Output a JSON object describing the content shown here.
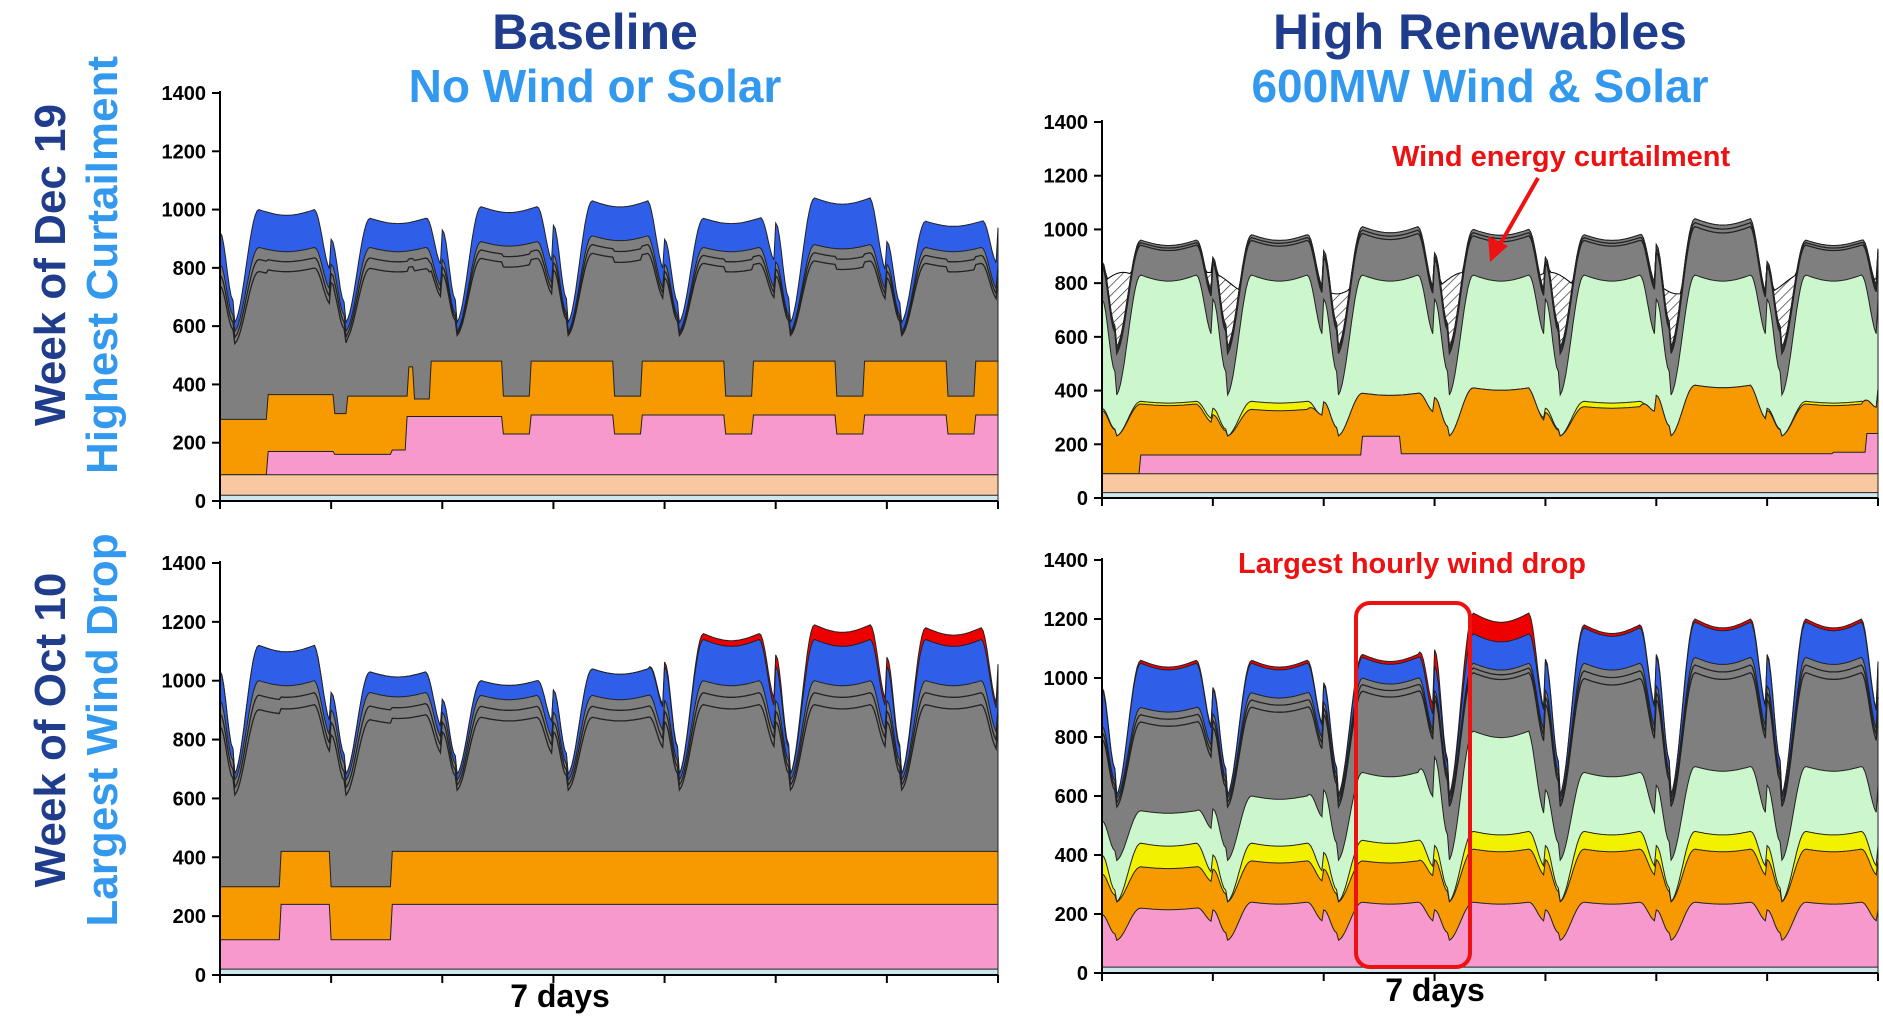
{
  "columns": [
    {
      "title": "Baseline",
      "subtitle": "No Wind or Solar"
    },
    {
      "title": "High Renewables",
      "subtitle": "600MW Wind & Solar"
    }
  ],
  "rows": [
    {
      "title": "Week of Dec 19",
      "subtitle": "Highest Curtailment"
    },
    {
      "title": "Week of Oct 10",
      "subtitle": "Largest Wind Drop"
    }
  ],
  "xlabel": "7 days",
  "annotations": {
    "curtailment": "Wind energy curtailment",
    "wind_drop": "Largest hourly wind drop"
  },
  "colors": {
    "title": "#1F3D8C",
    "subtitle": "#3399EE",
    "annotation": "#EE1111",
    "base": "#CCE8EE",
    "peach": "#FAC8A0",
    "pink": "#F799CC",
    "orange": "#F79900",
    "yellow": "#F2F200",
    "wind": "#CCF7CC",
    "gray": "#7F7F7F",
    "blue": "#2F5FE8",
    "red": "#EE0000"
  },
  "chart_data": [
    {
      "id": "baseline-dec",
      "type": "area",
      "title": "",
      "xlabel": "",
      "ylabel": "",
      "ylim": [
        0,
        1400
      ],
      "yticks": [
        0,
        200,
        400,
        600,
        800,
        1000,
        1200,
        1400
      ],
      "x_span_days": 7,
      "layers": [
        {
          "name": "base",
          "kind": "const",
          "value": 20
        },
        {
          "name": "peach",
          "kind": "const",
          "value": 90
        },
        {
          "name": "pink",
          "kind": "steps",
          "steps": [
            [
              0,
              90
            ],
            [
              0.42,
              170
            ],
            [
              1.02,
              160
            ],
            [
              1.55,
              175
            ],
            [
              1.65,
              175
            ],
            [
              1.68,
              290
            ],
            [
              2.55,
              230
            ],
            [
              2.8,
              295
            ],
            [
              3.55,
              230
            ],
            [
              3.8,
              295
            ],
            [
              4.55,
              230
            ],
            [
              4.8,
              295
            ],
            [
              5.55,
              230
            ],
            [
              5.8,
              295
            ],
            [
              6.55,
              230
            ],
            [
              6.8,
              295
            ]
          ]
        },
        {
          "name": "orange",
          "kind": "steps",
          "steps": [
            [
              0,
              280
            ],
            [
              0.42,
              365
            ],
            [
              1.02,
              300
            ],
            [
              1.15,
              360
            ],
            [
              1.68,
              360
            ],
            [
              1.7,
              460
            ],
            [
              1.75,
              350
            ],
            [
              1.9,
              480
            ],
            [
              2.55,
              360
            ],
            [
              2.8,
              480
            ],
            [
              3.55,
              360
            ],
            [
              3.8,
              480
            ],
            [
              4.55,
              360
            ],
            [
              4.8,
              480
            ],
            [
              5.55,
              360
            ],
            [
              5.8,
              480
            ],
            [
              6.55,
              360
            ],
            [
              6.8,
              480
            ]
          ]
        },
        {
          "name": "gray",
          "kind": "daily",
          "peak": 870,
          "trough": 580,
          "peak_adj": [
            0,
            0,
            20,
            40,
            0,
            10,
            0,
            0
          ]
        },
        {
          "name": "blue",
          "kind": "daily",
          "peak": 960,
          "trough": 610,
          "peak_adj": [
            40,
            10,
            50,
            70,
            10,
            80,
            0,
            60
          ]
        }
      ]
    },
    {
      "id": "renewables-dec",
      "type": "area",
      "title": "",
      "xlabel": "",
      "ylabel": "",
      "ylim": [
        0,
        1400
      ],
      "yticks": [
        0,
        200,
        400,
        600,
        800,
        1000,
        1200,
        1400
      ],
      "x_span_days": 7,
      "layers": [
        {
          "name": "base",
          "kind": "const",
          "value": 20
        },
        {
          "name": "peach",
          "kind": "const",
          "value": 90
        },
        {
          "name": "pink",
          "kind": "steps",
          "steps": [
            [
              0,
              90
            ],
            [
              0.35,
              160
            ],
            [
              2.35,
              230
            ],
            [
              2.7,
              165
            ],
            [
              6.6,
              170
            ],
            [
              6.9,
              240
            ]
          ]
        },
        {
          "name": "orange",
          "kind": "daily",
          "peak": 330,
          "trough": 230,
          "peak_adj": [
            20,
            0,
            60,
            80,
            10,
            90,
            20,
            120
          ]
        },
        {
          "name": "yellow",
          "kind": "daily",
          "peak": 360,
          "trough": 230,
          "peak_adj": [
            0,
            0,
            10,
            20,
            0,
            0,
            0,
            0
          ]
        },
        {
          "name": "wind",
          "kind": "daily",
          "peak": 830,
          "trough": 380,
          "peak_adj": [
            0,
            0,
            0,
            0,
            0,
            0,
            0,
            0
          ]
        },
        {
          "name": "gray",
          "kind": "daily",
          "peak": 960,
          "trough": 560,
          "peak_adj": [
            0,
            20,
            50,
            40,
            20,
            80,
            0,
            60
          ]
        }
      ]
    },
    {
      "id": "baseline-oct",
      "type": "area",
      "title": "",
      "xlabel": "",
      "ylabel": "",
      "ylim": [
        0,
        1400
      ],
      "yticks": [
        0,
        200,
        400,
        600,
        800,
        1000,
        1200,
        1400
      ],
      "x_span_days": 7,
      "layers": [
        {
          "name": "base",
          "kind": "const",
          "value": 20
        },
        {
          "name": "pink",
          "kind": "steps",
          "steps": [
            [
              0,
              120
            ],
            [
              0.55,
              240
            ],
            [
              1.0,
              120
            ],
            [
              1.55,
              240
            ]
          ]
        },
        {
          "name": "orange",
          "kind": "steps",
          "steps": [
            [
              0,
              300
            ],
            [
              0.55,
              420
            ],
            [
              1.0,
              300
            ],
            [
              1.55,
              420
            ]
          ]
        },
        {
          "name": "gray",
          "kind": "daily",
          "peak": 1000,
          "trough": 660,
          "peak_adj": [
            0,
            -40,
            -50,
            -50,
            0,
            0,
            0,
            -20
          ]
        },
        {
          "name": "blue",
          "kind": "daily",
          "peak": 1140,
          "trough": 680,
          "peak_adj": [
            -20,
            -110,
            -140,
            -100,
            0,
            0,
            0,
            -20
          ]
        },
        {
          "name": "red",
          "kind": "daily",
          "peak": 1160,
          "trough": 680,
          "peak_adj": [
            -40,
            -130,
            -160,
            -120,
            0,
            30,
            20,
            -10
          ]
        }
      ]
    },
    {
      "id": "renewables-oct",
      "type": "area",
      "title": "",
      "xlabel": "",
      "ylabel": "",
      "ylim": [
        0,
        1400
      ],
      "yticks": [
        0,
        200,
        400,
        600,
        800,
        1000,
        1200,
        1400
      ],
      "x_span_days": 7,
      "layers": [
        {
          "name": "base",
          "kind": "const",
          "value": 20
        },
        {
          "name": "pink",
          "kind": "daily",
          "peak": 240,
          "trough": 110,
          "peak_adj": [
            -20,
            0,
            0,
            0,
            0,
            0,
            0,
            0
          ]
        },
        {
          "name": "orange",
          "kind": "daily",
          "peak": 420,
          "trough": 240,
          "peak_adj": [
            -60,
            -40,
            -40,
            0,
            0,
            0,
            0,
            0
          ]
        },
        {
          "name": "yellow",
          "kind": "daily",
          "peak": 480,
          "trough": 240,
          "peak_adj": [
            -40,
            -40,
            -30,
            0,
            0,
            0,
            0,
            0
          ]
        },
        {
          "name": "wind",
          "kind": "daily",
          "peak": 700,
          "trough": 380,
          "peak_adj": [
            -150,
            -100,
            -20,
            120,
            -20,
            0,
            0,
            0
          ]
        },
        {
          "name": "gray",
          "kind": "daily",
          "peak": 1050,
          "trough": 590,
          "peak_adj": [
            -150,
            -100,
            -50,
            0,
            0,
            20,
            20,
            0
          ]
        },
        {
          "name": "blue",
          "kind": "daily",
          "peak": 1150,
          "trough": 600,
          "peak_adj": [
            -100,
            -100,
            -80,
            0,
            20,
            40,
            40,
            10
          ]
        },
        {
          "name": "red",
          "kind": "daily",
          "peak": 1160,
          "trough": 600,
          "peak_adj": [
            -100,
            -100,
            -80,
            60,
            20,
            40,
            40,
            10
          ]
        }
      ]
    }
  ]
}
